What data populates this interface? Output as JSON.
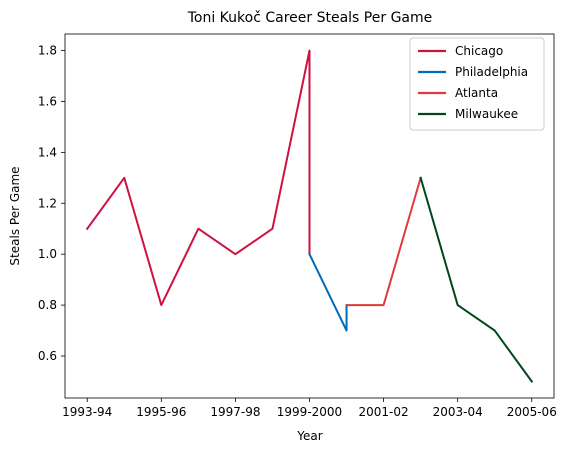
{
  "chart_data": {
    "type": "line",
    "title": "Toni Kukoč Career Steals Per Game",
    "xlabel": "Year",
    "ylabel": "Steals Per Game",
    "x_tick_labels": [
      "1993-94",
      "1995-96",
      "1997-98",
      "1999-2000",
      "2001-02",
      "2003-04",
      "2005-06"
    ],
    "x_tick_positions": [
      0,
      2,
      4,
      6,
      8,
      10,
      12
    ],
    "y_ticks": [
      0.6,
      0.8,
      1.0,
      1.2,
      1.4,
      1.6,
      1.8
    ],
    "y_tick_labels": [
      "0.6",
      "0.8",
      "1.0",
      "1.2",
      "1.4",
      "1.6",
      "1.8"
    ],
    "xlim": [
      -0.6,
      12.6
    ],
    "ylim": [
      0.435,
      1.865
    ],
    "grid": false,
    "legend_position": "top-right",
    "series": [
      {
        "name": "Chicago",
        "color": "#CE1141",
        "points": [
          [
            0,
            1.1
          ],
          [
            1,
            1.3
          ],
          [
            2,
            0.8
          ],
          [
            3,
            1.1
          ],
          [
            4,
            1.0
          ],
          [
            5,
            1.1
          ],
          [
            6,
            1.8
          ],
          [
            6,
            1.0
          ]
        ]
      },
      {
        "name": "Philadelphia",
        "color": "#006BB6",
        "points": [
          [
            6,
            1.0
          ],
          [
            7,
            0.7
          ],
          [
            7,
            0.8
          ]
        ]
      },
      {
        "name": "Atlanta",
        "color": "#E03A3E",
        "points": [
          [
            7,
            0.8
          ],
          [
            8,
            0.8
          ],
          [
            9,
            1.3
          ]
        ]
      },
      {
        "name": "Milwaukee",
        "color": "#00471B",
        "points": [
          [
            9,
            1.3
          ],
          [
            10,
            0.8
          ],
          [
            11,
            0.7
          ],
          [
            12,
            0.5
          ]
        ]
      }
    ]
  }
}
